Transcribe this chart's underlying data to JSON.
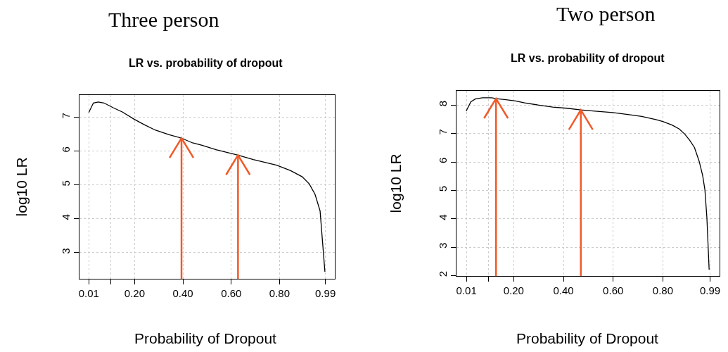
{
  "chart_data": [
    {
      "type": "line",
      "title": "Three person",
      "subtitle": "LR vs. probability of dropout",
      "xlabel": "Probability of Dropout",
      "ylabel": "log10 LR",
      "x": [
        0.01,
        0.029,
        0.049,
        0.073,
        0.111,
        0.15,
        0.198,
        0.237,
        0.285,
        0.343,
        0.394,
        0.44,
        0.479,
        0.537,
        0.628,
        0.691,
        0.788,
        0.846,
        0.894,
        0.923,
        0.947,
        0.968,
        0.978,
        0.988
      ],
      "series": [
        {
          "color": "#000000",
          "values": [
            7.14,
            7.42,
            7.45,
            7.42,
            7.28,
            7.15,
            6.94,
            6.79,
            6.62,
            6.48,
            6.38,
            6.24,
            6.17,
            6.04,
            5.88,
            5.75,
            5.58,
            5.42,
            5.24,
            5.03,
            4.72,
            4.23,
            3.33,
            2.43
          ]
        }
      ],
      "xlim": [
        -0.0292,
        1.0292
      ],
      "xticks": [
        {
          "value": 0.01,
          "label": "0.01"
        },
        {
          "value": 0.1,
          "label": null
        },
        {
          "value": 0.2,
          "label": "0.20"
        },
        {
          "value": 0.4,
          "label": "0.40"
        },
        {
          "value": 0.6,
          "label": "0.60"
        },
        {
          "value": 0.8,
          "label": "0.80"
        },
        {
          "value": 0.99,
          "label": "0.99"
        }
      ],
      "ylim": [
        2.22,
        7.66
      ],
      "yticks": [
        3,
        4,
        5,
        6,
        7
      ],
      "grid": true,
      "marker": "none",
      "line_style": "solid",
      "ref_lines": [
        {
          "axis": "x",
          "value": 0.394,
          "color": "#f05a28"
        },
        {
          "axis": "x",
          "value": 0.628,
          "color": "#f05a28"
        }
      ]
    },
    {
      "type": "line",
      "title": "Two person",
      "subtitle": "LR vs. probability of dropout",
      "xlabel": "Probability of Dropout",
      "ylabel": "log10 LR",
      "x": [
        0.009,
        0.028,
        0.047,
        0.075,
        0.112,
        0.129,
        0.169,
        0.207,
        0.244,
        0.301,
        0.357,
        0.414,
        0.47,
        0.527,
        0.598,
        0.659,
        0.715,
        0.772,
        0.8,
        0.837,
        0.866,
        0.889,
        0.908,
        0.927,
        0.946,
        0.96,
        0.969,
        0.977,
        0.986
      ],
      "series": [
        {
          "color": "#000000",
          "values": [
            7.79,
            8.12,
            8.22,
            8.26,
            8.26,
            8.23,
            8.19,
            8.15,
            8.08,
            8.0,
            7.93,
            7.89,
            7.83,
            7.79,
            7.74,
            7.67,
            7.6,
            7.49,
            7.42,
            7.3,
            7.16,
            6.97,
            6.76,
            6.51,
            6.02,
            5.52,
            5.02,
            4.03,
            2.21
          ]
        }
      ],
      "xlim": [
        -0.0307,
        1.028
      ],
      "xticks": [
        {
          "value": 0.01,
          "label": "0.01"
        },
        {
          "value": 0.1,
          "label": null
        },
        {
          "value": 0.2,
          "label": "0.20"
        },
        {
          "value": 0.4,
          "label": "0.40"
        },
        {
          "value": 0.6,
          "label": "0.60"
        },
        {
          "value": 0.8,
          "label": "0.80"
        },
        {
          "value": 0.99,
          "label": "0.99"
        }
      ],
      "ylim": [
        1.98,
        8.51
      ],
      "yticks": [
        2,
        3,
        4,
        5,
        6,
        7,
        8
      ],
      "grid": true,
      "marker": "none",
      "line_style": "solid",
      "ref_lines": [
        {
          "axis": "x",
          "value": 0.129,
          "color": "#f05a28"
        },
        {
          "axis": "x",
          "value": 0.47,
          "color": "#f05a28"
        }
      ]
    }
  ]
}
